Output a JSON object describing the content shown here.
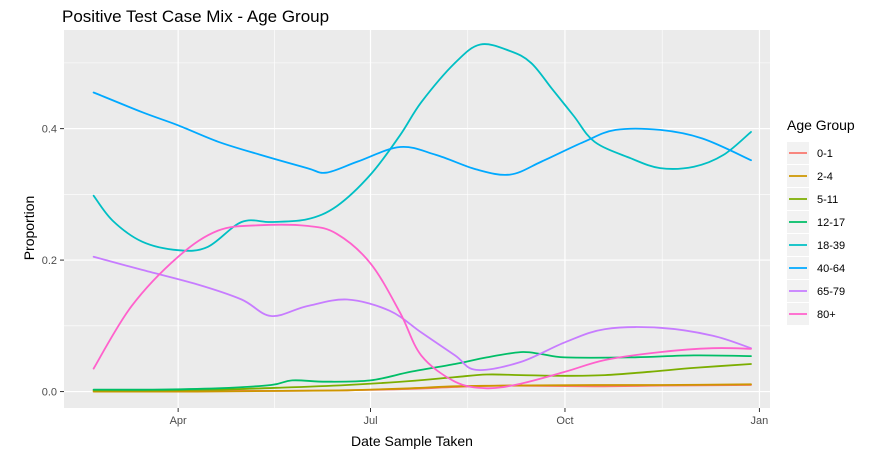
{
  "chart_data": {
    "type": "line",
    "title": "Positive Test Case Mix - Age Group",
    "xlabel": "Date Sample Taken",
    "ylabel": "Proportion",
    "x_ticks": [
      {
        "date": "2021-04-01",
        "label": "Apr"
      },
      {
        "date": "2021-07-01",
        "label": "Jul"
      },
      {
        "date": "2021-10-01",
        "label": "Oct"
      },
      {
        "date": "2022-01-01",
        "label": "Jan"
      }
    ],
    "xlim": [
      "2021-02-06",
      "2022-01-06"
    ],
    "y_ticks": [
      0.0,
      0.2,
      0.4
    ],
    "y_tick_labels": [
      "0.0",
      "0.2",
      "0.4"
    ],
    "ylim": [
      -0.025,
      0.55
    ],
    "grid": true,
    "panel_background": "#ebebeb",
    "legend": {
      "title": "Age Group",
      "position": "right"
    },
    "series": [
      {
        "name": "0-1",
        "color": "#f8766d",
        "points": [
          [
            "2021-02-20",
            0.001
          ],
          [
            "2021-04-10",
            0.001
          ],
          [
            "2021-05-20",
            0.001
          ],
          [
            "2021-06-20",
            0.002
          ],
          [
            "2021-07-20",
            0.004
          ],
          [
            "2021-08-10",
            0.007
          ],
          [
            "2021-09-01",
            0.009
          ],
          [
            "2021-10-15",
            0.008
          ],
          [
            "2021-11-15",
            0.009
          ],
          [
            "2021-12-28",
            0.01
          ]
        ]
      },
      {
        "name": "2-4",
        "color": "#cd9600",
        "points": [
          [
            "2021-02-20",
            0.0
          ],
          [
            "2021-04-10",
            0.0
          ],
          [
            "2021-05-20",
            0.001
          ],
          [
            "2021-06-20",
            0.002
          ],
          [
            "2021-07-20",
            0.005
          ],
          [
            "2021-08-10",
            0.008
          ],
          [
            "2021-09-01",
            0.009
          ],
          [
            "2021-10-15",
            0.01
          ],
          [
            "2021-11-15",
            0.01
          ],
          [
            "2021-12-28",
            0.011
          ]
        ]
      },
      {
        "name": "5-11",
        "color": "#7cae00",
        "points": [
          [
            "2021-02-20",
            0.002
          ],
          [
            "2021-03-20",
            0.002
          ],
          [
            "2021-04-20",
            0.003
          ],
          [
            "2021-05-20",
            0.006
          ],
          [
            "2021-06-20",
            0.01
          ],
          [
            "2021-07-20",
            0.016
          ],
          [
            "2021-08-10",
            0.022
          ],
          [
            "2021-08-25",
            0.026
          ],
          [
            "2021-09-10",
            0.025
          ],
          [
            "2021-10-01",
            0.024
          ],
          [
            "2021-10-20",
            0.025
          ],
          [
            "2021-11-10",
            0.03
          ],
          [
            "2021-12-01",
            0.036
          ],
          [
            "2021-12-28",
            0.042
          ]
        ]
      },
      {
        "name": "12-17",
        "color": "#00be67",
        "points": [
          [
            "2021-02-20",
            0.003
          ],
          [
            "2021-03-20",
            0.003
          ],
          [
            "2021-04-20",
            0.005
          ],
          [
            "2021-05-15",
            0.01
          ],
          [
            "2021-05-25",
            0.017
          ],
          [
            "2021-06-10",
            0.015
          ],
          [
            "2021-07-01",
            0.017
          ],
          [
            "2021-07-20",
            0.03
          ],
          [
            "2021-08-10",
            0.042
          ],
          [
            "2021-08-25",
            0.052
          ],
          [
            "2021-09-10",
            0.06
          ],
          [
            "2021-09-20",
            0.057
          ],
          [
            "2021-10-01",
            0.052
          ],
          [
            "2021-11-01",
            0.052
          ],
          [
            "2021-12-01",
            0.055
          ],
          [
            "2021-12-28",
            0.054
          ]
        ]
      },
      {
        "name": "18-39",
        "color": "#00bfc4",
        "points": [
          [
            "2021-02-20",
            0.298
          ],
          [
            "2021-03-01",
            0.26
          ],
          [
            "2021-03-15",
            0.228
          ],
          [
            "2021-04-01",
            0.215
          ],
          [
            "2021-04-15",
            0.22
          ],
          [
            "2021-05-01",
            0.258
          ],
          [
            "2021-05-15",
            0.258
          ],
          [
            "2021-06-01",
            0.262
          ],
          [
            "2021-06-15",
            0.282
          ],
          [
            "2021-07-01",
            0.33
          ],
          [
            "2021-07-15",
            0.39
          ],
          [
            "2021-07-25",
            0.44
          ],
          [
            "2021-08-10",
            0.5
          ],
          [
            "2021-08-22",
            0.528
          ],
          [
            "2021-09-05",
            0.518
          ],
          [
            "2021-09-15",
            0.5
          ],
          [
            "2021-09-25",
            0.46
          ],
          [
            "2021-10-05",
            0.42
          ],
          [
            "2021-10-15",
            0.38
          ],
          [
            "2021-11-01",
            0.355
          ],
          [
            "2021-11-15",
            0.34
          ],
          [
            "2021-12-01",
            0.342
          ],
          [
            "2021-12-15",
            0.36
          ],
          [
            "2021-12-28",
            0.395
          ]
        ]
      },
      {
        "name": "40-64",
        "color": "#00a9ff",
        "points": [
          [
            "2021-02-20",
            0.455
          ],
          [
            "2021-03-15",
            0.425
          ],
          [
            "2021-04-01",
            0.405
          ],
          [
            "2021-04-20",
            0.38
          ],
          [
            "2021-05-10",
            0.36
          ],
          [
            "2021-06-01",
            0.34
          ],
          [
            "2021-06-10",
            0.333
          ],
          [
            "2021-06-25",
            0.35
          ],
          [
            "2021-07-15",
            0.372
          ],
          [
            "2021-08-01",
            0.36
          ],
          [
            "2021-08-20",
            0.338
          ],
          [
            "2021-09-05",
            0.33
          ],
          [
            "2021-09-20",
            0.35
          ],
          [
            "2021-10-10",
            0.38
          ],
          [
            "2021-10-25",
            0.398
          ],
          [
            "2021-11-15",
            0.398
          ],
          [
            "2021-12-05",
            0.385
          ],
          [
            "2021-12-28",
            0.352
          ]
        ]
      },
      {
        "name": "65-79",
        "color": "#c77cff",
        "points": [
          [
            "2021-02-20",
            0.205
          ],
          [
            "2021-03-15",
            0.185
          ],
          [
            "2021-04-10",
            0.163
          ],
          [
            "2021-05-01",
            0.14
          ],
          [
            "2021-05-15",
            0.115
          ],
          [
            "2021-06-01",
            0.13
          ],
          [
            "2021-06-20",
            0.14
          ],
          [
            "2021-07-10",
            0.123
          ],
          [
            "2021-07-25",
            0.09
          ],
          [
            "2021-08-10",
            0.055
          ],
          [
            "2021-08-20",
            0.033
          ],
          [
            "2021-09-10",
            0.045
          ],
          [
            "2021-10-01",
            0.075
          ],
          [
            "2021-10-20",
            0.095
          ],
          [
            "2021-11-15",
            0.097
          ],
          [
            "2021-12-10",
            0.085
          ],
          [
            "2021-12-28",
            0.066
          ]
        ]
      },
      {
        "name": "80+",
        "color": "#ff61cc",
        "points": [
          [
            "2021-02-20",
            0.035
          ],
          [
            "2021-03-10",
            0.13
          ],
          [
            "2021-04-01",
            0.205
          ],
          [
            "2021-04-20",
            0.245
          ],
          [
            "2021-05-10",
            0.253
          ],
          [
            "2021-06-01",
            0.252
          ],
          [
            "2021-06-15",
            0.24
          ],
          [
            "2021-07-01",
            0.195
          ],
          [
            "2021-07-15",
            0.12
          ],
          [
            "2021-07-25",
            0.055
          ],
          [
            "2021-08-10",
            0.015
          ],
          [
            "2021-08-25",
            0.005
          ],
          [
            "2021-09-10",
            0.012
          ],
          [
            "2021-10-01",
            0.03
          ],
          [
            "2021-10-20",
            0.048
          ],
          [
            "2021-11-15",
            0.06
          ],
          [
            "2021-12-10",
            0.066
          ],
          [
            "2021-12-28",
            0.065
          ]
        ]
      }
    ]
  }
}
